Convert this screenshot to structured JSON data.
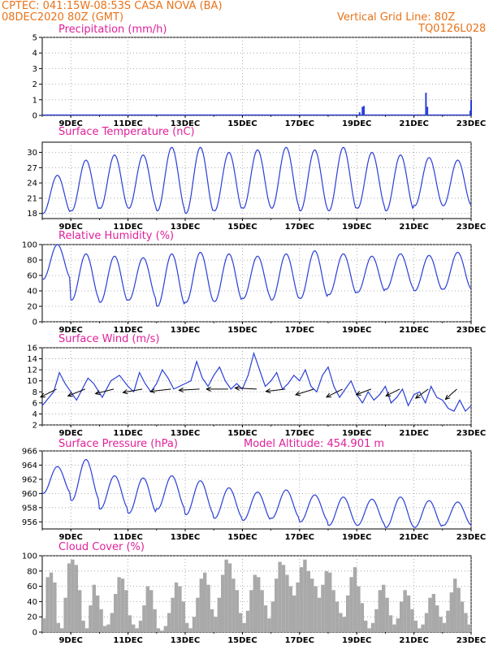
{
  "header": {
    "station_line": "CPTEC:   041:15W-08:53S    CASA NOVA (BA)",
    "date_line": "08DEC2020 80Z (GMT)",
    "grid_line": "Vertical Grid Line: 80Z",
    "run_code": "TQ0126L028"
  },
  "colors": {
    "header": "#e8731a",
    "title": "#e0209a",
    "line": "#2a3fd6",
    "cloud": "#a9a9a9",
    "grid": "#999999"
  },
  "chart_data": [
    {
      "id": "precip",
      "type": "bar",
      "title": "Precipitation (mm/h)",
      "ylim": [
        0,
        5
      ],
      "yticks": [
        0,
        1,
        2,
        3,
        4,
        5
      ],
      "x_range": [
        8.0,
        23.0
      ],
      "xtick_positions": [
        9,
        11,
        13,
        15,
        17,
        19,
        21,
        23
      ],
      "xtick_labels": [
        "9DEC",
        "11DEC",
        "13DEC",
        "15DEC",
        "17DEC",
        "19DEC",
        "21DEC",
        "23DEC"
      ],
      "x": [
        19.1,
        19.2,
        19.25,
        21.42,
        21.47,
        22.97,
        23.0
      ],
      "values": [
        0.2,
        0.55,
        0.6,
        1.45,
        0.55,
        0.3,
        1.0
      ]
    },
    {
      "id": "temperature",
      "type": "line",
      "title": "Surface Temperature (nC)",
      "ylim": [
        17,
        32
      ],
      "yticks": [
        18,
        21,
        24,
        27,
        30
      ],
      "x_range": [
        8.0,
        23.0
      ],
      "xtick_positions": [
        9,
        11,
        13,
        15,
        17,
        19,
        21,
        23
      ],
      "xtick_labels": [
        "9DEC",
        "11DEC",
        "13DEC",
        "15DEC",
        "17DEC",
        "19DEC",
        "21DEC",
        "23DEC"
      ],
      "daily_max": [
        25.5,
        28.5,
        29.5,
        29.5,
        31.0,
        31.0,
        30.0,
        30.5,
        31.0,
        30.5,
        31.0,
        30.0,
        29.5,
        29.0,
        28.5
      ],
      "daily_min": [
        18.0,
        18.5,
        19.0,
        19.0,
        18.5,
        18.0,
        18.5,
        19.0,
        19.0,
        18.5,
        18.5,
        19.0,
        18.5,
        19.5,
        19.5
      ]
    },
    {
      "id": "humidity",
      "type": "line",
      "title": "Relative Humidity (%)",
      "ylim": [
        0,
        100
      ],
      "yticks": [
        0,
        20,
        40,
        60,
        80,
        100
      ],
      "x_range": [
        8.0,
        23.0
      ],
      "xtick_positions": [
        9,
        11,
        13,
        15,
        17,
        19,
        21,
        23
      ],
      "xtick_labels": [
        "9DEC",
        "11DEC",
        "13DEC",
        "15DEC",
        "17DEC",
        "19DEC",
        "21DEC",
        "23DEC"
      ],
      "daily_max": [
        100,
        88,
        85,
        83,
        88,
        90,
        88,
        85,
        88,
        92,
        88,
        85,
        88,
        86,
        90
      ],
      "daily_min": [
        55,
        28,
        25,
        28,
        20,
        25,
        26,
        30,
        28,
        30,
        35,
        38,
        42,
        40,
        42
      ]
    },
    {
      "id": "wind",
      "type": "line",
      "title": "Surface Wind (m/s)",
      "ylim": [
        2,
        16
      ],
      "yticks": [
        2,
        4,
        6,
        8,
        10,
        12,
        14,
        16
      ],
      "x_range": [
        8.0,
        23.0
      ],
      "xtick_positions": [
        9,
        11,
        13,
        15,
        17,
        19,
        21,
        23
      ],
      "xtick_labels": [
        "9DEC",
        "11DEC",
        "13DEC",
        "15DEC",
        "17DEC",
        "19DEC",
        "21DEC",
        "23DEC"
      ],
      "x": [
        8.0,
        8.4,
        8.6,
        8.8,
        9.0,
        9.2,
        9.4,
        9.6,
        9.8,
        10.1,
        10.4,
        10.7,
        11.0,
        11.2,
        11.4,
        11.6,
        11.8,
        12.0,
        12.2,
        12.4,
        12.6,
        12.8,
        13.0,
        13.2,
        13.4,
        13.6,
        13.8,
        14.0,
        14.2,
        14.4,
        14.6,
        14.8,
        15.0,
        15.2,
        15.4,
        15.6,
        15.8,
        16.0,
        16.2,
        16.4,
        16.6,
        16.8,
        17.0,
        17.2,
        17.4,
        17.6,
        17.8,
        18.0,
        18.2,
        18.4,
        18.6,
        18.8,
        19.0,
        19.2,
        19.4,
        19.6,
        19.8,
        20.0,
        20.2,
        20.4,
        20.6,
        20.8,
        21.0,
        21.2,
        21.4,
        21.6,
        21.8,
        22.0,
        22.2,
        22.4,
        22.6,
        22.8,
        23.0
      ],
      "values": [
        5.5,
        8.0,
        11.5,
        9.5,
        8.0,
        6.5,
        8.5,
        10.5,
        9.5,
        7.0,
        10.0,
        11.0,
        9.0,
        8.0,
        11.5,
        9.5,
        8.0,
        9.5,
        12.0,
        10.5,
        8.5,
        9.0,
        9.5,
        10.0,
        13.5,
        10.5,
        9.0,
        11.0,
        12.5,
        10.0,
        8.5,
        9.5,
        8.5,
        11.0,
        15.0,
        12.0,
        9.0,
        10.0,
        11.5,
        8.5,
        9.5,
        11.0,
        10.0,
        12.0,
        9.0,
        8.0,
        11.0,
        12.5,
        9.0,
        7.0,
        8.5,
        10.0,
        7.5,
        6.0,
        8.0,
        6.5,
        7.5,
        9.0,
        6.0,
        7.0,
        8.5,
        5.5,
        7.5,
        8.0,
        6.0,
        9.0,
        7.0,
        6.5,
        5.0,
        4.5,
        6.5,
        4.5,
        5.5
      ],
      "arrows": [
        {
          "x": 8.5,
          "u": -0.7,
          "v": -0.35
        },
        {
          "x": 9.5,
          "u": -0.75,
          "v": -0.3
        },
        {
          "x": 10.5,
          "u": -0.8,
          "v": -0.2
        },
        {
          "x": 11.5,
          "u": -0.85,
          "v": -0.15
        },
        {
          "x": 12.5,
          "u": -0.9,
          "v": -0.1
        },
        {
          "x": 13.5,
          "u": -0.9,
          "v": -0.05
        },
        {
          "x": 14.5,
          "u": -0.95,
          "v": 0.0
        },
        {
          "x": 15.5,
          "u": -0.95,
          "v": 0.05
        },
        {
          "x": 16.5,
          "u": -0.85,
          "v": -0.1
        },
        {
          "x": 17.5,
          "u": -0.8,
          "v": -0.25
        },
        {
          "x": 18.5,
          "u": -0.7,
          "v": -0.35
        },
        {
          "x": 19.5,
          "u": -0.65,
          "v": -0.25
        },
        {
          "x": 20.5,
          "u": -0.6,
          "v": -0.3
        },
        {
          "x": 21.5,
          "u": -0.55,
          "v": -0.4
        },
        {
          "x": 22.5,
          "u": -0.5,
          "v": -0.45
        }
      ]
    },
    {
      "id": "pressure",
      "type": "line",
      "title": "Surface Pressure (hPa)",
      "annotation": "Model Altitude: 454.901  m",
      "ylim": [
        955,
        966
      ],
      "yticks": [
        956,
        958,
        960,
        962,
        964,
        966
      ],
      "x_range": [
        8.0,
        23.0
      ],
      "xtick_positions": [
        9,
        11,
        13,
        15,
        17,
        19,
        21,
        23
      ],
      "xtick_labels": [
        "9DEC",
        "11DEC",
        "13DEC",
        "15DEC",
        "17DEC",
        "19DEC",
        "21DEC",
        "23DEC"
      ],
      "daily_max": [
        963.8,
        964.8,
        962.5,
        962.2,
        962.5,
        961.8,
        960.8,
        960.2,
        960.5,
        959.8,
        959.5,
        959.2,
        959.5,
        959.0,
        958.8
      ],
      "daily_min": [
        960.0,
        959.0,
        957.8,
        957.2,
        957.8,
        957.0,
        956.5,
        956.2,
        956.5,
        956.0,
        955.5,
        955.5,
        955.2,
        955.2,
        955.5
      ]
    },
    {
      "id": "cloud",
      "type": "bar",
      "title": "Cloud Cover (%)",
      "ylim": [
        0,
        100
      ],
      "yticks": [
        0,
        20,
        40,
        60,
        80,
        100
      ],
      "x_range": [
        8.0,
        23.0
      ],
      "xtick_positions": [
        9,
        11,
        13,
        15,
        17,
        19,
        21,
        23
      ],
      "xtick_labels": [
        "9DEC",
        "11DEC",
        "13DEC",
        "15DEC",
        "17DEC",
        "19DEC",
        "21DEC",
        "23DEC"
      ],
      "step_hours": 3,
      "values": [
        18,
        72,
        78,
        65,
        12,
        5,
        45,
        90,
        95,
        88,
        55,
        15,
        5,
        35,
        62,
        48,
        30,
        8,
        10,
        25,
        50,
        72,
        70,
        55,
        22,
        10,
        5,
        15,
        35,
        60,
        55,
        30,
        5,
        2,
        8,
        25,
        45,
        65,
        60,
        40,
        12,
        5,
        20,
        45,
        70,
        78,
        62,
        30,
        20,
        45,
        75,
        95,
        90,
        70,
        55,
        25,
        12,
        28,
        55,
        75,
        72,
        55,
        35,
        18,
        40,
        70,
        92,
        88,
        75,
        60,
        48,
        65,
        85,
        95,
        80,
        70,
        60,
        45,
        62,
        80,
        78,
        55,
        40,
        25,
        20,
        48,
        72,
        85,
        60,
        38,
        15,
        5,
        12,
        30,
        55,
        62,
        45,
        22,
        10,
        18,
        40,
        55,
        48,
        30,
        15,
        5,
        10,
        25,
        45,
        50,
        35,
        20,
        12,
        28,
        52,
        70,
        58,
        40,
        25,
        10
      ]
    }
  ]
}
